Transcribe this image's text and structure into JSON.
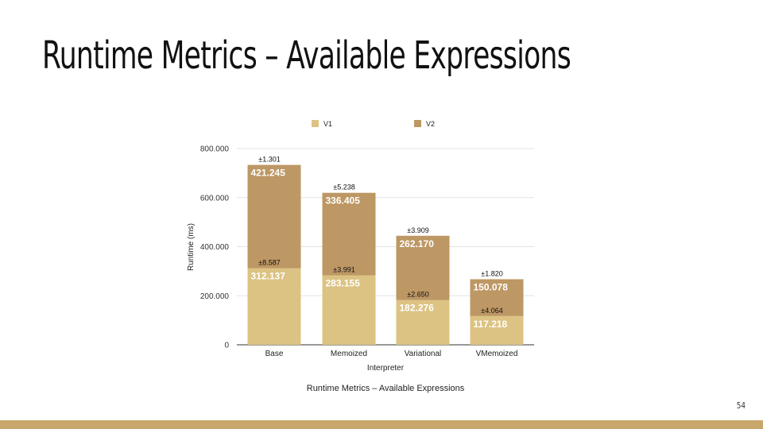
{
  "slide": {
    "title": "Runtime Metrics – Available Expressions",
    "page_number": "54",
    "footer_color": "#c9a66b"
  },
  "chart_data": {
    "type": "bar",
    "stacked": true,
    "title": "",
    "caption": "Runtime Metrics – Available Expressions",
    "xlabel": "Interpreter",
    "ylabel": "Runtime (ms)",
    "categories": [
      "Base",
      "Memoized",
      "Variational",
      "VMemoized"
    ],
    "ylim": [
      0,
      800
    ],
    "yticks": [
      0,
      200,
      400,
      600,
      800
    ],
    "ytick_labels": [
      "0",
      "200.000",
      "400.000",
      "600.000",
      "800.000"
    ],
    "grid": true,
    "legend_position": "top",
    "series": [
      {
        "name": "V1",
        "color": "#dcc383",
        "values": [
          312.137,
          283.155,
          182.276,
          117.218
        ],
        "labels": [
          "312.137",
          "283.155",
          "182.276",
          "117.218"
        ],
        "errors": [
          "±8.587",
          "±3.991",
          "±2.650",
          "±4.064"
        ]
      },
      {
        "name": "V2",
        "color": "#bd9764",
        "values": [
          421.245,
          336.405,
          262.17,
          150.078
        ],
        "labels": [
          "421.245",
          "336.405",
          "262.170",
          "150.078"
        ],
        "errors": [
          "±1.301",
          "±5.238",
          "±3.909",
          "±1.820"
        ]
      }
    ]
  }
}
